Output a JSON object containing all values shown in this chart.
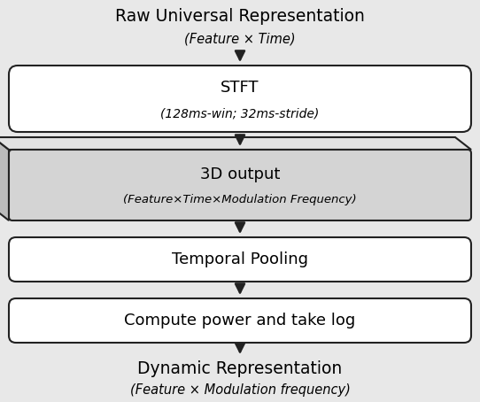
{
  "bg_color": "#e8e8e8",
  "box_bg_white": "#ffffff",
  "box_bg_gray": "#d4d4d4",
  "box_bg_side": "#bbbbbb",
  "box_bg_top": "#e2e2e2",
  "box_border": "#222222",
  "arrow_color": "#222222",
  "title_top": "Raw Universal Representation",
  "subtitle_top": "(Feature × Time)",
  "stft_label": "STFT",
  "stft_sublabel": "(128ms-win; 32ms-stride)",
  "box3d_label": "3D output",
  "box3d_sublabel": "(Feature×Time×Modulation Frequency)",
  "pool_label": "Temporal Pooling",
  "power_label": "Compute power and take log",
  "title_bottom": "Dynamic Representation",
  "subtitle_bottom": "(Feature × Modulation frequency)",
  "figsize": [
    5.42,
    4.54
  ],
  "dpi": 100
}
